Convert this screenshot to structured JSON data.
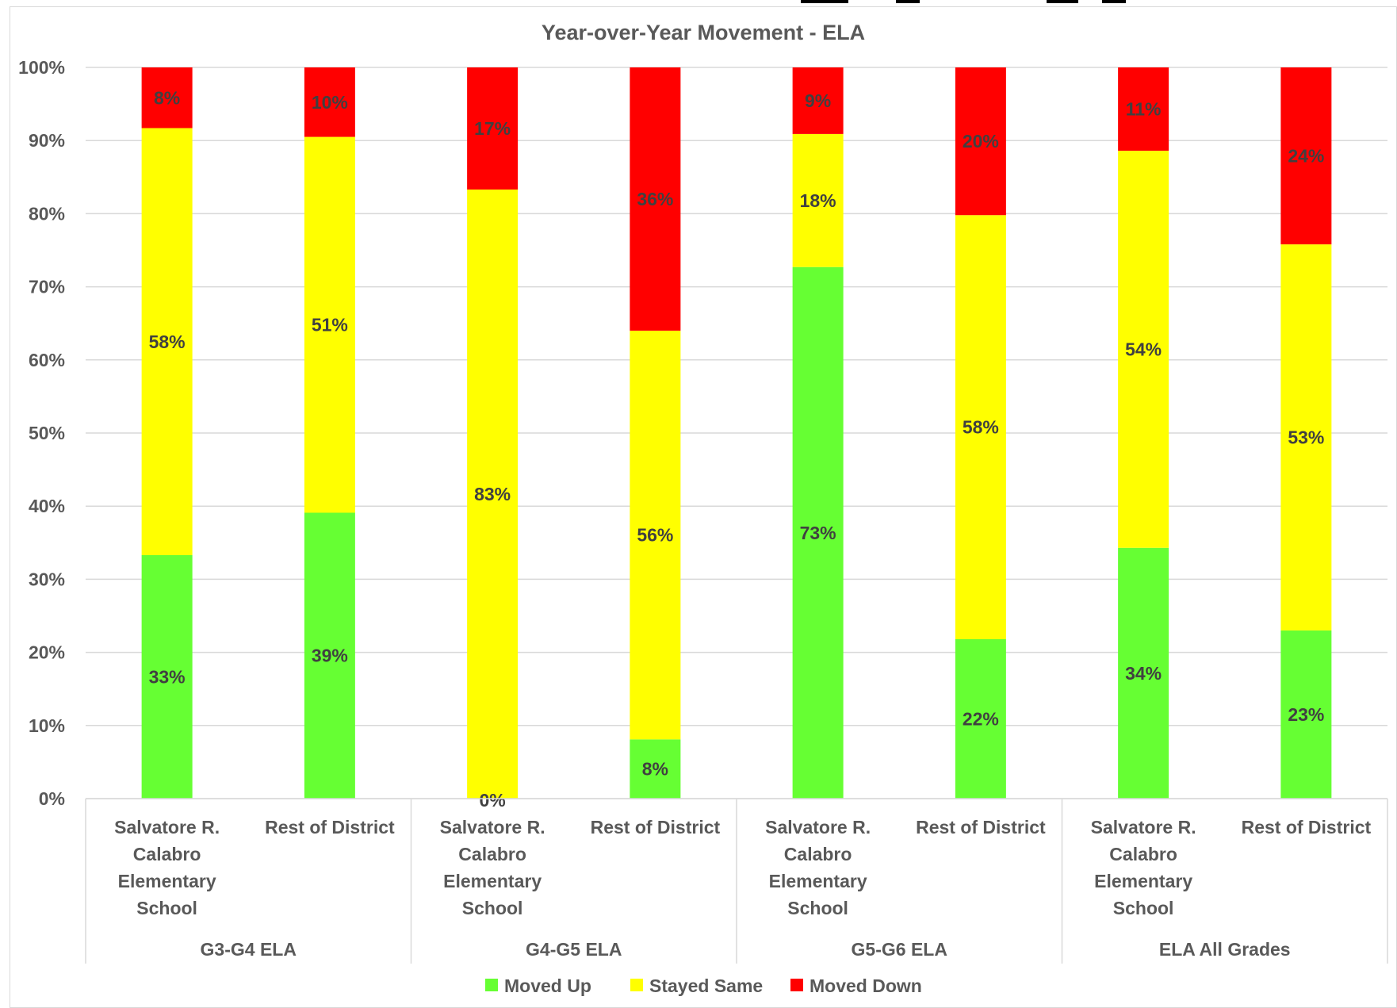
{
  "chart_data": {
    "type": "bar",
    "stacked": true,
    "title": "Year-over-Year Movement - ELA",
    "yticks": [
      "0%",
      "10%",
      "20%",
      "30%",
      "40%",
      "50%",
      "60%",
      "70%",
      "80%",
      "90%",
      "100%"
    ],
    "ylim": [
      0,
      100
    ],
    "groups": [
      "G3-G4 ELA",
      "G4-G5 ELA",
      "G5-G6 ELA",
      "ELA All Grades"
    ],
    "categories": [
      "Salvatore R. Calabro Elementary School",
      "Rest of District",
      "Salvatore R. Calabro Elementary School",
      "Rest of District",
      "Salvatore R. Calabro Elementary School",
      "Rest of District",
      "Salvatore R. Calabro Elementary School",
      "Rest of District"
    ],
    "category_lines": [
      [
        "Salvatore R.",
        "Calabro",
        "Elementary",
        "School"
      ],
      [
        "Rest of District"
      ],
      [
        "Salvatore R.",
        "Calabro",
        "Elementary",
        "School"
      ],
      [
        "Rest of District"
      ],
      [
        "Salvatore R.",
        "Calabro",
        "Elementary",
        "School"
      ],
      [
        "Rest of District"
      ],
      [
        "Salvatore R.",
        "Calabro",
        "Elementary",
        "School"
      ],
      [
        "Rest of District"
      ]
    ],
    "series": [
      {
        "name": "Moved Up",
        "color": "#66ff33",
        "values": [
          33.3,
          39.1,
          0,
          8.1,
          72.7,
          21.8,
          34.3,
          23.0
        ],
        "labels": [
          "33%",
          "39%",
          "0%",
          "8%",
          "73%",
          "22%",
          "34%",
          "23%"
        ]
      },
      {
        "name": "Stayed Same",
        "color": "#ffff00",
        "values": [
          58.4,
          51.4,
          83.3,
          55.9,
          18.2,
          58.0,
          54.3,
          52.8
        ],
        "labels": [
          "58%",
          "51%",
          "83%",
          "56%",
          "18%",
          "58%",
          "54%",
          "53%"
        ]
      },
      {
        "name": "Moved Down",
        "color": "#ff0000",
        "values": [
          8.3,
          9.5,
          16.7,
          36.0,
          9.1,
          20.2,
          11.4,
          24.2
        ],
        "labels": [
          "8%",
          "10%",
          "17%",
          "36%",
          "9%",
          "20%",
          "11%",
          "24%"
        ]
      }
    ],
    "legend": "bottom",
    "grid": true
  }
}
